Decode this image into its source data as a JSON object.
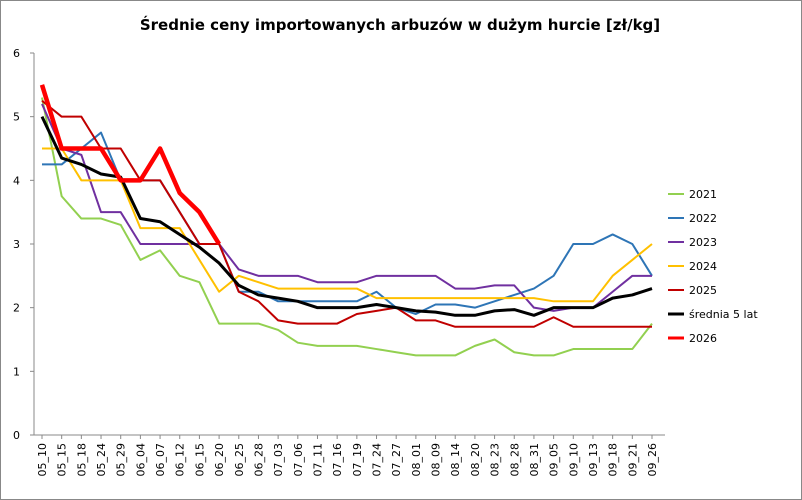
{
  "chart_data": {
    "type": "line",
    "title": "Średnie ceny importowanych arbuzów w dużym hurcie [zł/kg]",
    "categories": [
      "05_10",
      "05_15",
      "05_18",
      "05_24",
      "05_29",
      "06_04",
      "06_07",
      "06_12",
      "06_15",
      "06_20",
      "06_25",
      "06_28",
      "07_03",
      "07_06",
      "07_11",
      "07_16",
      "07_19",
      "07_24",
      "07_27",
      "08_01",
      "08_09",
      "08_14",
      "08_20",
      "08_23",
      "08_28",
      "08_31",
      "09_05",
      "09_10",
      "09_13",
      "09_18",
      "09_21",
      "09_26"
    ],
    "series": [
      {
        "name": "2021",
        "color": "#92d050",
        "values": [
          5.3,
          3.75,
          3.4,
          3.4,
          3.3,
          2.75,
          2.9,
          2.5,
          2.4,
          1.75,
          1.75,
          1.75,
          1.65,
          1.45,
          1.4,
          1.4,
          1.4,
          1.35,
          1.3,
          1.25,
          1.25,
          1.25,
          1.4,
          1.5,
          1.3,
          1.25,
          1.25,
          1.35,
          1.35,
          1.35,
          1.35,
          1.75
        ]
      },
      {
        "name": "2022",
        "color": "#2e75b6",
        "values": [
          4.25,
          4.25,
          4.5,
          4.75,
          4.0,
          4.0,
          4.0,
          3.5,
          3.0,
          3.0,
          2.25,
          2.25,
          2.1,
          2.1,
          2.1,
          2.1,
          2.1,
          2.25,
          2.0,
          1.9,
          2.05,
          2.05,
          2.0,
          2.1,
          2.2,
          2.3,
          2.5,
          3.0,
          3.0,
          3.15,
          3.0,
          2.5
        ]
      },
      {
        "name": "2023",
        "color": "#7030a0",
        "values": [
          5.2,
          4.5,
          4.4,
          3.5,
          3.5,
          3.0,
          3.0,
          3.0,
          3.0,
          3.0,
          2.6,
          2.5,
          2.5,
          2.5,
          2.4,
          2.4,
          2.4,
          2.5,
          2.5,
          2.5,
          2.5,
          2.3,
          2.3,
          2.35,
          2.35,
          2.0,
          1.95,
          2.0,
          2.0,
          2.25,
          2.5,
          2.5
        ]
      },
      {
        "name": "2024",
        "color": "#ffc000",
        "values": [
          4.5,
          4.5,
          4.0,
          4.0,
          4.0,
          3.25,
          3.25,
          3.25,
          2.75,
          2.25,
          2.5,
          2.4,
          2.3,
          2.3,
          2.3,
          2.3,
          2.3,
          2.15,
          2.15,
          2.15,
          2.15,
          2.15,
          2.15,
          2.15,
          2.15,
          2.15,
          2.1,
          2.1,
          2.1,
          2.5,
          2.75,
          3.0
        ]
      },
      {
        "name": "2025",
        "color": "#c00000",
        "values": [
          5.25,
          5.0,
          5.0,
          4.5,
          4.5,
          4.0,
          4.0,
          3.5,
          3.0,
          3.0,
          2.25,
          2.1,
          1.8,
          1.75,
          1.75,
          1.75,
          1.9,
          1.95,
          2.0,
          1.8,
          1.8,
          1.7,
          1.7,
          1.7,
          1.7,
          1.7,
          1.85,
          1.7,
          1.7,
          1.7,
          1.7,
          1.7
        ]
      },
      {
        "name": "średnia 5 lat",
        "color": "#000000",
        "values": [
          5.0,
          4.35,
          4.25,
          4.1,
          4.05,
          3.4,
          3.35,
          3.15,
          2.95,
          2.7,
          2.35,
          2.2,
          2.15,
          2.1,
          2.0,
          2.0,
          2.0,
          2.05,
          2.0,
          1.95,
          1.93,
          1.88,
          1.88,
          1.95,
          1.97,
          1.88,
          2.0,
          2.0,
          2.0,
          2.15,
          2.2,
          2.3
        ]
      },
      {
        "name": "2026",
        "color": "#ff0000",
        "values": [
          5.5,
          4.5,
          4.5,
          4.5,
          4.0,
          4.0,
          4.5,
          3.8,
          3.5,
          3.0,
          null,
          null,
          null,
          null,
          null,
          null,
          null,
          null,
          null,
          null,
          null,
          null,
          null,
          null,
          null,
          null,
          null,
          null,
          null,
          null,
          null,
          null
        ]
      }
    ],
    "ylim": [
      0,
      6
    ],
    "yticks": [
      0,
      1,
      2,
      3,
      4,
      5,
      6
    ],
    "grid": false,
    "legend": "right"
  }
}
